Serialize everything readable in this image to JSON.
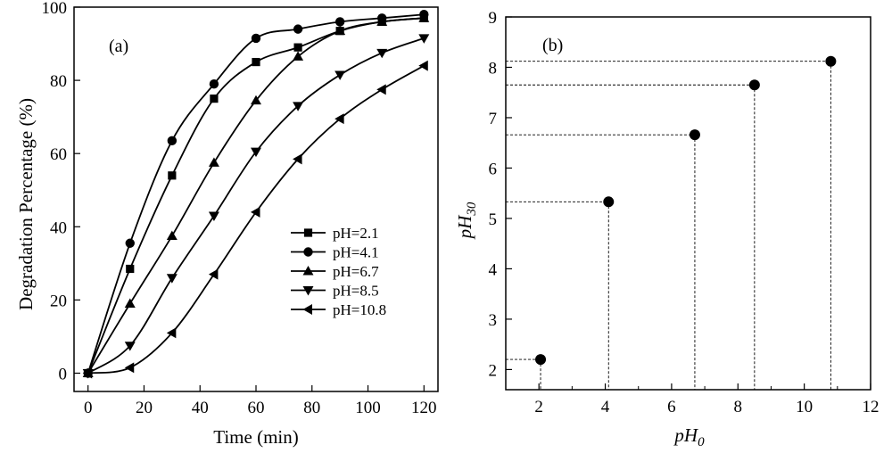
{
  "chart_data": [
    {
      "type": "line",
      "panel_label": "(a)",
      "xlabel": "Time (min)",
      "ylabel": "Degradation Percentage (%)",
      "xlim": [
        -5,
        125
      ],
      "ylim": [
        -5,
        100
      ],
      "xticks": [
        0,
        20,
        40,
        60,
        80,
        100,
        120
      ],
      "yticks": [
        0,
        20,
        40,
        60,
        80,
        100
      ],
      "x": [
        0,
        15,
        30,
        45,
        60,
        75,
        90,
        105,
        120
      ],
      "legend_position": "center-right",
      "series": [
        {
          "name": "pH=2.1",
          "marker": "square",
          "values": [
            0,
            28.5,
            54,
            75,
            85,
            89,
            93.5,
            96,
            97
          ]
        },
        {
          "name": "pH=4.1",
          "marker": "circle",
          "values": [
            0,
            35.5,
            63.5,
            79,
            91.5,
            94,
            96,
            97,
            98
          ]
        },
        {
          "name": "pH=6.7",
          "marker": "triangle-up",
          "values": [
            0,
            19,
            37.5,
            57.5,
            74.5,
            86.5,
            93.5,
            96,
            97
          ]
        },
        {
          "name": "pH=8.5",
          "marker": "triangle-down",
          "values": [
            0,
            7.5,
            26,
            43,
            60.5,
            73,
            81.5,
            87.5,
            91.5
          ]
        },
        {
          "name": "pH=10.8",
          "marker": "triangle-left",
          "values": [
            0,
            1.5,
            11,
            27,
            44,
            58.5,
            69.5,
            77.5,
            84
          ]
        }
      ]
    },
    {
      "type": "scatter",
      "panel_label": "(b)",
      "xlabel_base": "pH",
      "xlabel_sub": "0",
      "ylabel_base": "pH",
      "ylabel_sub": "30",
      "xlim": [
        1,
        12
      ],
      "ylim": [
        1.6,
        9
      ],
      "xticks": [
        2,
        4,
        6,
        8,
        10,
        12
      ],
      "yticks": [
        2,
        3,
        4,
        5,
        6,
        7,
        8,
        9
      ],
      "drop_lines": true,
      "points": [
        {
          "x": 2.05,
          "y": 2.2
        },
        {
          "x": 4.1,
          "y": 5.33
        },
        {
          "x": 6.7,
          "y": 6.66
        },
        {
          "x": 8.5,
          "y": 7.65
        },
        {
          "x": 10.8,
          "y": 8.12
        }
      ]
    }
  ]
}
